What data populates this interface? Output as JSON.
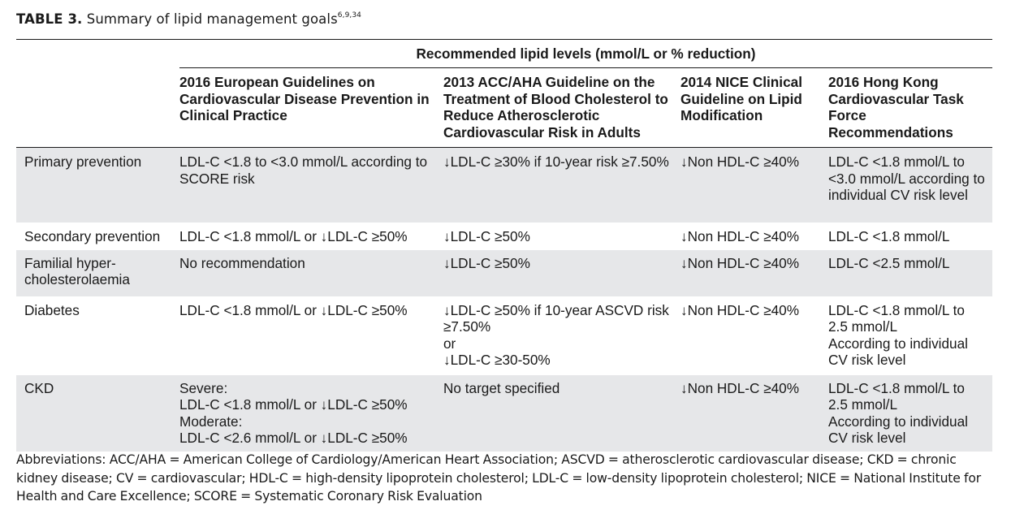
{
  "caption": {
    "label": "TABLE 3.",
    "title": "Summary of lipid management goals",
    "refs": "6,9,34"
  },
  "table": {
    "group_header": "Recommended lipid levels (mmol/L or % reduction)",
    "columns": [
      "",
      "2016 European Guidelines on Cardiovascular Disease Prevention in Clinical Practice",
      "2013 ACC/AHA Guideline on the Treatment of Blood Cholesterol to Reduce Atherosclerotic Cardiovascular Risk in Adults",
      "2014 NICE Clinical Guideline on Lipid Modification",
      "2016 Hong Kong Cardiovascular Task Force Recommendations"
    ],
    "rows": [
      {
        "label": "Primary prevention",
        "european": [
          "LDL-C <1.8 to <3.0 mmol/L according to SCORE risk"
        ],
        "acc_aha": [
          "↓LDL-C ≥30% if 10-year risk ≥7.50%"
        ],
        "nice": [
          "↓Non HDL-C ≥40%"
        ],
        "hong_kong": [
          "LDL-C <1.8 mmol/L to <3.0 mmol/L according to individual CV risk level"
        ]
      },
      {
        "label": "Secondary prevention",
        "european": [
          "LDL-C <1.8 mmol/L or ↓LDL-C ≥50%"
        ],
        "acc_aha": [
          "↓LDL-C ≥50%"
        ],
        "nice": [
          "↓Non HDL-C ≥40%"
        ],
        "hong_kong": [
          "LDL-C <1.8 mmol/L"
        ]
      },
      {
        "label": "Familial hyper-cholesterolaemia",
        "european": [
          "No recommendation"
        ],
        "acc_aha": [
          "↓LDL-C ≥50%"
        ],
        "nice": [
          "↓Non HDL-C ≥40%"
        ],
        "hong_kong": [
          "LDL-C <2.5 mmol/L"
        ]
      },
      {
        "label": "Diabetes",
        "european": [
          "LDL-C <1.8 mmol/L or ↓LDL-C ≥50%"
        ],
        "acc_aha": [
          "↓LDL-C ≥50% if 10-year ASCVD risk ≥7.50%",
          "or",
          "↓LDL-C ≥30-50%"
        ],
        "nice": [
          "↓Non HDL-C ≥40%"
        ],
        "hong_kong": [
          "LDL-C <1.8 mmol/L to 2.5 mmol/L",
          "According to individual CV risk level"
        ]
      },
      {
        "label": "CKD",
        "european": [
          "Severe:",
          "LDL-C <1.8 mmol/L or ↓LDL-C ≥50%",
          "Moderate:",
          "LDL-C <2.6 mmol/L or ↓LDL-C ≥50%"
        ],
        "acc_aha": [
          "No target specified"
        ],
        "nice": [
          "↓Non HDL-C ≥40%"
        ],
        "hong_kong": [
          "LDL-C <1.8 mmol/L to 2.5 mmol/L",
          "According to individual CV risk level"
        ]
      }
    ]
  },
  "abbreviations": "Abbreviations:  ACC/AHA = American College of Cardiology/American Heart Association; ASCVD = atherosclerotic cardiovascular disease; CKD = chronic kidney disease; CV = cardiovascular; HDL-C = high-density lipoprotein cholesterol; LDL-C = low-density lipoprotein cholesterol; NICE = National Institute for Health and Care Excellence; SCORE = Systematic Coronary Risk Evaluation",
  "colors": {
    "shade": "#e6e7e9",
    "text": "#1a1a1a",
    "rule": "#1a1a1a"
  }
}
